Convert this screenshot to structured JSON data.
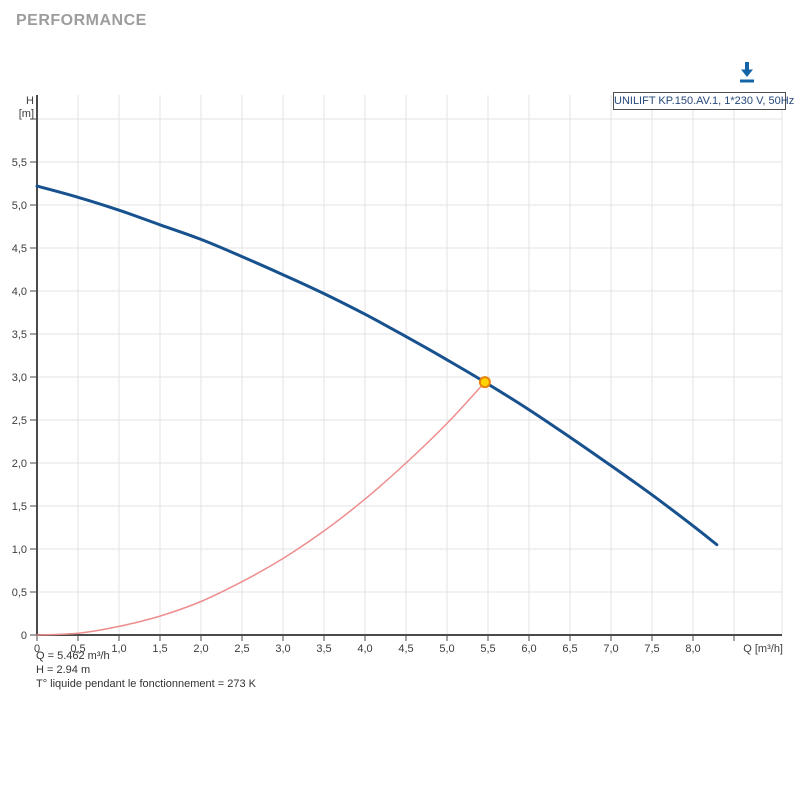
{
  "header": {
    "title": "PERFORMANCE"
  },
  "toolbar": {
    "download_tooltip": "download"
  },
  "legend": {
    "label": "UNILIFT KP.150.AV.1, 1*230 V, 50Hz",
    "text_color": "#27497c"
  },
  "annotations": {
    "line1": "Q = 5.462 m³/h",
    "line2": "H = 2.94 m",
    "line3": "T° liquide pendant le fonctionnement = 273 K"
  },
  "chart_data": {
    "type": "line",
    "title": "",
    "xlabel": "Q [m³/h]",
    "ylabel_line1": "H",
    "ylabel_line2": "[m]",
    "xlim": [
      0,
      9.1
    ],
    "ylim": [
      0,
      6.28
    ],
    "grid": true,
    "legend_position": "top-right",
    "x_ticks": {
      "values": [
        0,
        0.5,
        1,
        1.5,
        2,
        2.5,
        3,
        3.5,
        4,
        4.5,
        5,
        5.5,
        6,
        6.5,
        7,
        7.5,
        8
      ],
      "labels": [
        "0",
        "0,5",
        "1,0",
        "1,5",
        "2,0",
        "2,5",
        "3,0",
        "3,5",
        "4,0",
        "4,5",
        "5,0",
        "5,5",
        "6,0",
        "6,5",
        "7,0",
        "7,5",
        "8,0"
      ],
      "extra_unlabeled": [
        8.5
      ]
    },
    "y_ticks": {
      "values": [
        0,
        0.5,
        1,
        1.5,
        2,
        2.5,
        3,
        3.5,
        4,
        4.5,
        5,
        5.5
      ],
      "labels": [
        "0",
        "0,5",
        "1,0",
        "1,5",
        "2,0",
        "2,5",
        "3,0",
        "3,5",
        "4,0",
        "4,5",
        "5,0",
        "5,5"
      ],
      "extra_unlabeled": [
        6.0
      ]
    },
    "series": [
      {
        "name": "pump-curve UNILIFT KP.150.AV.1, 1*230 V, 50Hz",
        "color": "#17518e",
        "width": 3,
        "points": [
          [
            0,
            5.22
          ],
          [
            0.5,
            5.09
          ],
          [
            1,
            4.94
          ],
          [
            1.5,
            4.77
          ],
          [
            2,
            4.6
          ],
          [
            2.5,
            4.4
          ],
          [
            3,
            4.19
          ],
          [
            3.5,
            3.97
          ],
          [
            4,
            3.73
          ],
          [
            4.5,
            3.47
          ],
          [
            5,
            3.2
          ],
          [
            5.462,
            2.94
          ],
          [
            6,
            2.62
          ],
          [
            6.5,
            2.3
          ],
          [
            7,
            1.97
          ],
          [
            7.5,
            1.63
          ],
          [
            8,
            1.27
          ],
          [
            8.29,
            1.05
          ]
        ]
      },
      {
        "name": "system-curve",
        "color": "#ee8d8d",
        "width": 1.5,
        "points": [
          [
            0,
            0
          ],
          [
            0.5,
            0.02
          ],
          [
            1,
            0.1
          ],
          [
            1.5,
            0.22
          ],
          [
            2,
            0.39
          ],
          [
            2.5,
            0.62
          ],
          [
            3,
            0.89
          ],
          [
            3.5,
            1.21
          ],
          [
            4,
            1.58
          ],
          [
            4.5,
            2.0
          ],
          [
            5,
            2.46
          ],
          [
            5.462,
            2.94
          ]
        ]
      }
    ],
    "duty_point": {
      "q": 5.462,
      "h": 2.94,
      "fill": "#ffd400",
      "stroke": "#e8820a",
      "radius": 5
    },
    "colors": {
      "grid": "#e3e3e3",
      "axis": "#4a4a4a",
      "tick_text": "#3d3d3d"
    }
  }
}
